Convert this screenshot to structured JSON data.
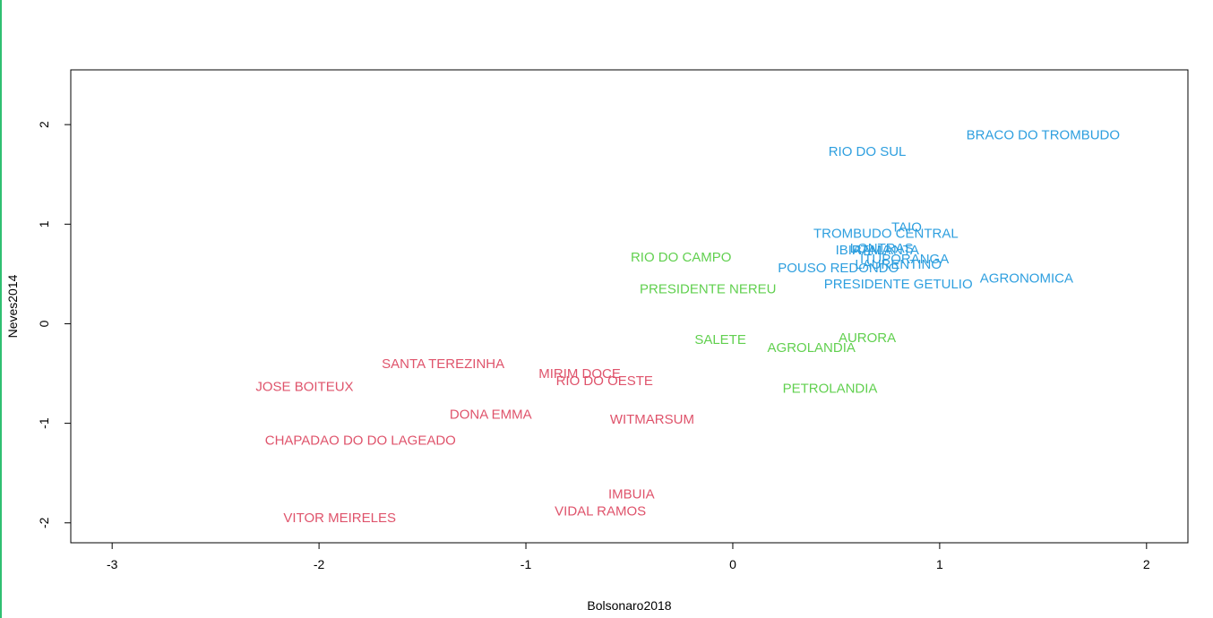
{
  "chart_data": {
    "type": "scatter",
    "title": "",
    "xlabel": "Bolsonaro2018",
    "ylabel": "Neves2014",
    "xlim": [
      -3.2,
      2.2
    ],
    "ylim": [
      -2.2,
      2.55
    ],
    "xticks": [
      -3,
      -2,
      -1,
      0,
      1,
      2
    ],
    "yticks": [
      -2,
      -1,
      0,
      1,
      2
    ],
    "xtick_labels": [
      "-3",
      "-2",
      "-1",
      "0",
      "1",
      "2"
    ],
    "ytick_labels": [
      "-2",
      "-1",
      "0",
      "1",
      "2"
    ],
    "grid": false,
    "legend": "none",
    "colors": {
      "cluster1": "#2E9FDF",
      "cluster2": "#61D04F",
      "cluster3": "#DF536B"
    },
    "points": [
      {
        "label": "BRACO DO TROMBUDO",
        "x": 1.5,
        "y": 1.9,
        "group": "cluster1"
      },
      {
        "label": "RIO DO SUL",
        "x": 0.65,
        "y": 1.73,
        "group": "cluster1"
      },
      {
        "label": "TAIO",
        "x": 0.84,
        "y": 0.97,
        "group": "cluster1"
      },
      {
        "label": "TROMBUDO CENTRAL",
        "x": 0.74,
        "y": 0.91,
        "group": "cluster1"
      },
      {
        "label": "LONTRAS",
        "x": 0.72,
        "y": 0.76,
        "group": "cluster1"
      },
      {
        "label": "IBIRAMA",
        "x": 0.63,
        "y": 0.74,
        "group": "cluster1"
      },
      {
        "label": "ATALANTA",
        "x": 0.74,
        "y": 0.74,
        "group": "cluster1"
      },
      {
        "label": "ITUPORANGA",
        "x": 0.83,
        "y": 0.65,
        "group": "cluster1"
      },
      {
        "label": "LAURENTINO",
        "x": 0.8,
        "y": 0.6,
        "group": "cluster1"
      },
      {
        "label": "POUSO REDONDO",
        "x": 0.51,
        "y": 0.56,
        "group": "cluster1"
      },
      {
        "label": "AGRONOMICA",
        "x": 1.42,
        "y": 0.46,
        "group": "cluster1"
      },
      {
        "label": "PRESIDENTE GETULIO",
        "x": 0.8,
        "y": 0.4,
        "group": "cluster1"
      },
      {
        "label": "RIO DO CAMPO",
        "x": -0.25,
        "y": 0.67,
        "group": "cluster2"
      },
      {
        "label": "PRESIDENTE NEREU",
        "x": -0.12,
        "y": 0.35,
        "group": "cluster2"
      },
      {
        "label": "SALETE",
        "x": -0.06,
        "y": -0.16,
        "group": "cluster2"
      },
      {
        "label": "AURORA",
        "x": 0.65,
        "y": -0.14,
        "group": "cluster2"
      },
      {
        "label": "AGROLANDIA",
        "x": 0.38,
        "y": -0.24,
        "group": "cluster2"
      },
      {
        "label": "PETROLANDIA",
        "x": 0.47,
        "y": -0.65,
        "group": "cluster2"
      },
      {
        "label": "SANTA TEREZINHA",
        "x": -1.4,
        "y": -0.4,
        "group": "cluster3"
      },
      {
        "label": "MIRIM DOCE",
        "x": -0.74,
        "y": -0.5,
        "group": "cluster3"
      },
      {
        "label": "RIO DO OESTE",
        "x": -0.62,
        "y": -0.57,
        "group": "cluster3"
      },
      {
        "label": "JOSE BOITEUX",
        "x": -2.07,
        "y": -0.63,
        "group": "cluster3"
      },
      {
        "label": "DONA EMMA",
        "x": -1.17,
        "y": -0.91,
        "group": "cluster3"
      },
      {
        "label": "WITMARSUM",
        "x": -0.39,
        "y": -0.96,
        "group": "cluster3"
      },
      {
        "label": "CHAPADAO DO DO LAGEADO",
        "x": -1.8,
        "y": -1.17,
        "group": "cluster3"
      },
      {
        "label": "IMBUIA",
        "x": -0.49,
        "y": -1.71,
        "group": "cluster3"
      },
      {
        "label": "VIDAL RAMOS",
        "x": -0.64,
        "y": -1.88,
        "group": "cluster3"
      },
      {
        "label": "VITOR MEIRELES",
        "x": -1.9,
        "y": -1.95,
        "group": "cluster3"
      }
    ]
  }
}
